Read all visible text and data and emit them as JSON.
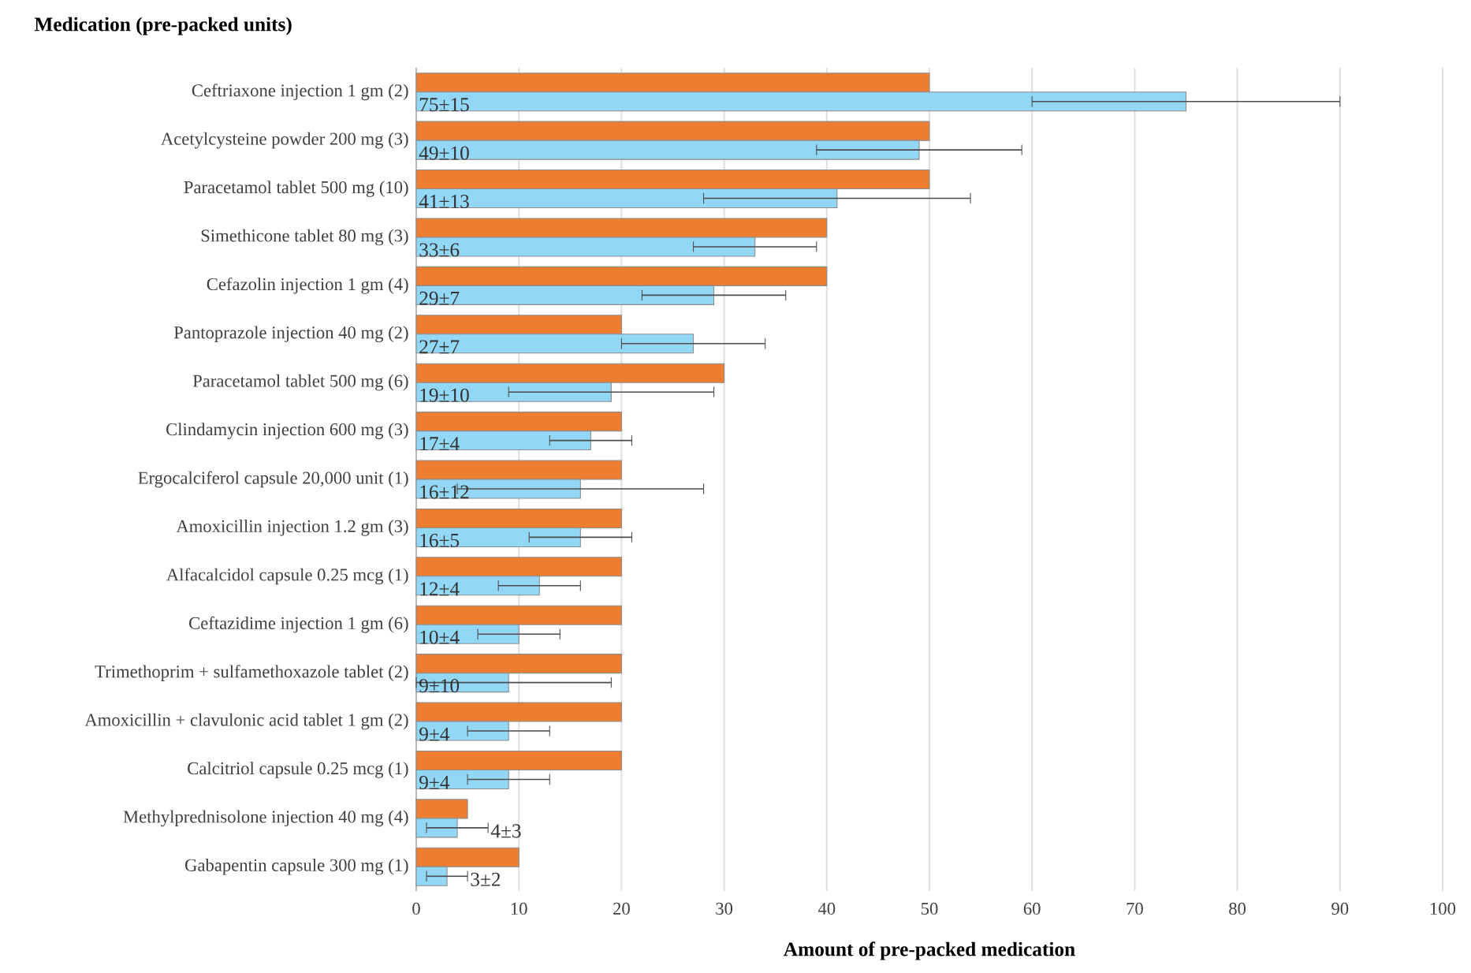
{
  "chart_data": {
    "type": "bar",
    "orientation": "horizontal",
    "ylabel": "Medication (pre-packed units)",
    "xlabel": "Amount of pre-packed medication",
    "categories": [
      "Ceftriaxone injection 1 gm (2)",
      "Acetylcysteine powder 200 mg (3)",
      "Paracetamol tablet 500 mg (10)",
      "Simethicone tablet 80 mg (3)",
      "Cefazolin injection 1 gm (4)",
      "Pantoprazole injection 40 mg (2)",
      "Paracetamol tablet 500 mg (6)",
      "Clindamycin injection 600 mg (3)",
      "Ergocalciferol capsule 20,000 unit (1)",
      "Amoxicillin injection 1.2 gm (3)",
      "Alfacalcidol capsule 0.25 mcg (1)",
      "Ceftazidime injection 1 gm (6)",
      "Trimethoprim + sulfamethoxazole tablet (2)",
      "Amoxicillin + clavulonic acid tablet 1 gm (2)",
      "Calcitriol capsule 0.25 mcg (1)",
      "Methylprednisolone injection 40 mg (4)",
      "Gabapentin capsule 300 mg (1)"
    ],
    "series": [
      {
        "color": "#ed7d31",
        "values": [
          50,
          50,
          50,
          40,
          40,
          20,
          30,
          20,
          20,
          20,
          20,
          20,
          20,
          20,
          20,
          5,
          10
        ]
      },
      {
        "color": "#92d7f5",
        "values": [
          75,
          49,
          41,
          33,
          29,
          27,
          19,
          17,
          16,
          16,
          12,
          10,
          9,
          9,
          9,
          4,
          3
        ],
        "errors": [
          15,
          10,
          13,
          6,
          7,
          7,
          10,
          4,
          12,
          5,
          4,
          4,
          [
            0,
            19
          ],
          4,
          4,
          3,
          2
        ],
        "value_labels": [
          "75±15",
          "49±10",
          "41±13",
          "33±6",
          "29±7",
          "27±7",
          "19±10",
          "17±4",
          "16±12",
          "16±5",
          "12±4",
          "10±4",
          "9±10",
          "9±4",
          "9±4",
          "4±3",
          "3±2"
        ]
      }
    ],
    "xlim": [
      0,
      100
    ],
    "xticks": [
      0,
      10,
      20,
      30,
      40,
      50,
      60,
      70,
      80,
      90,
      100
    ],
    "grid": "x"
  }
}
